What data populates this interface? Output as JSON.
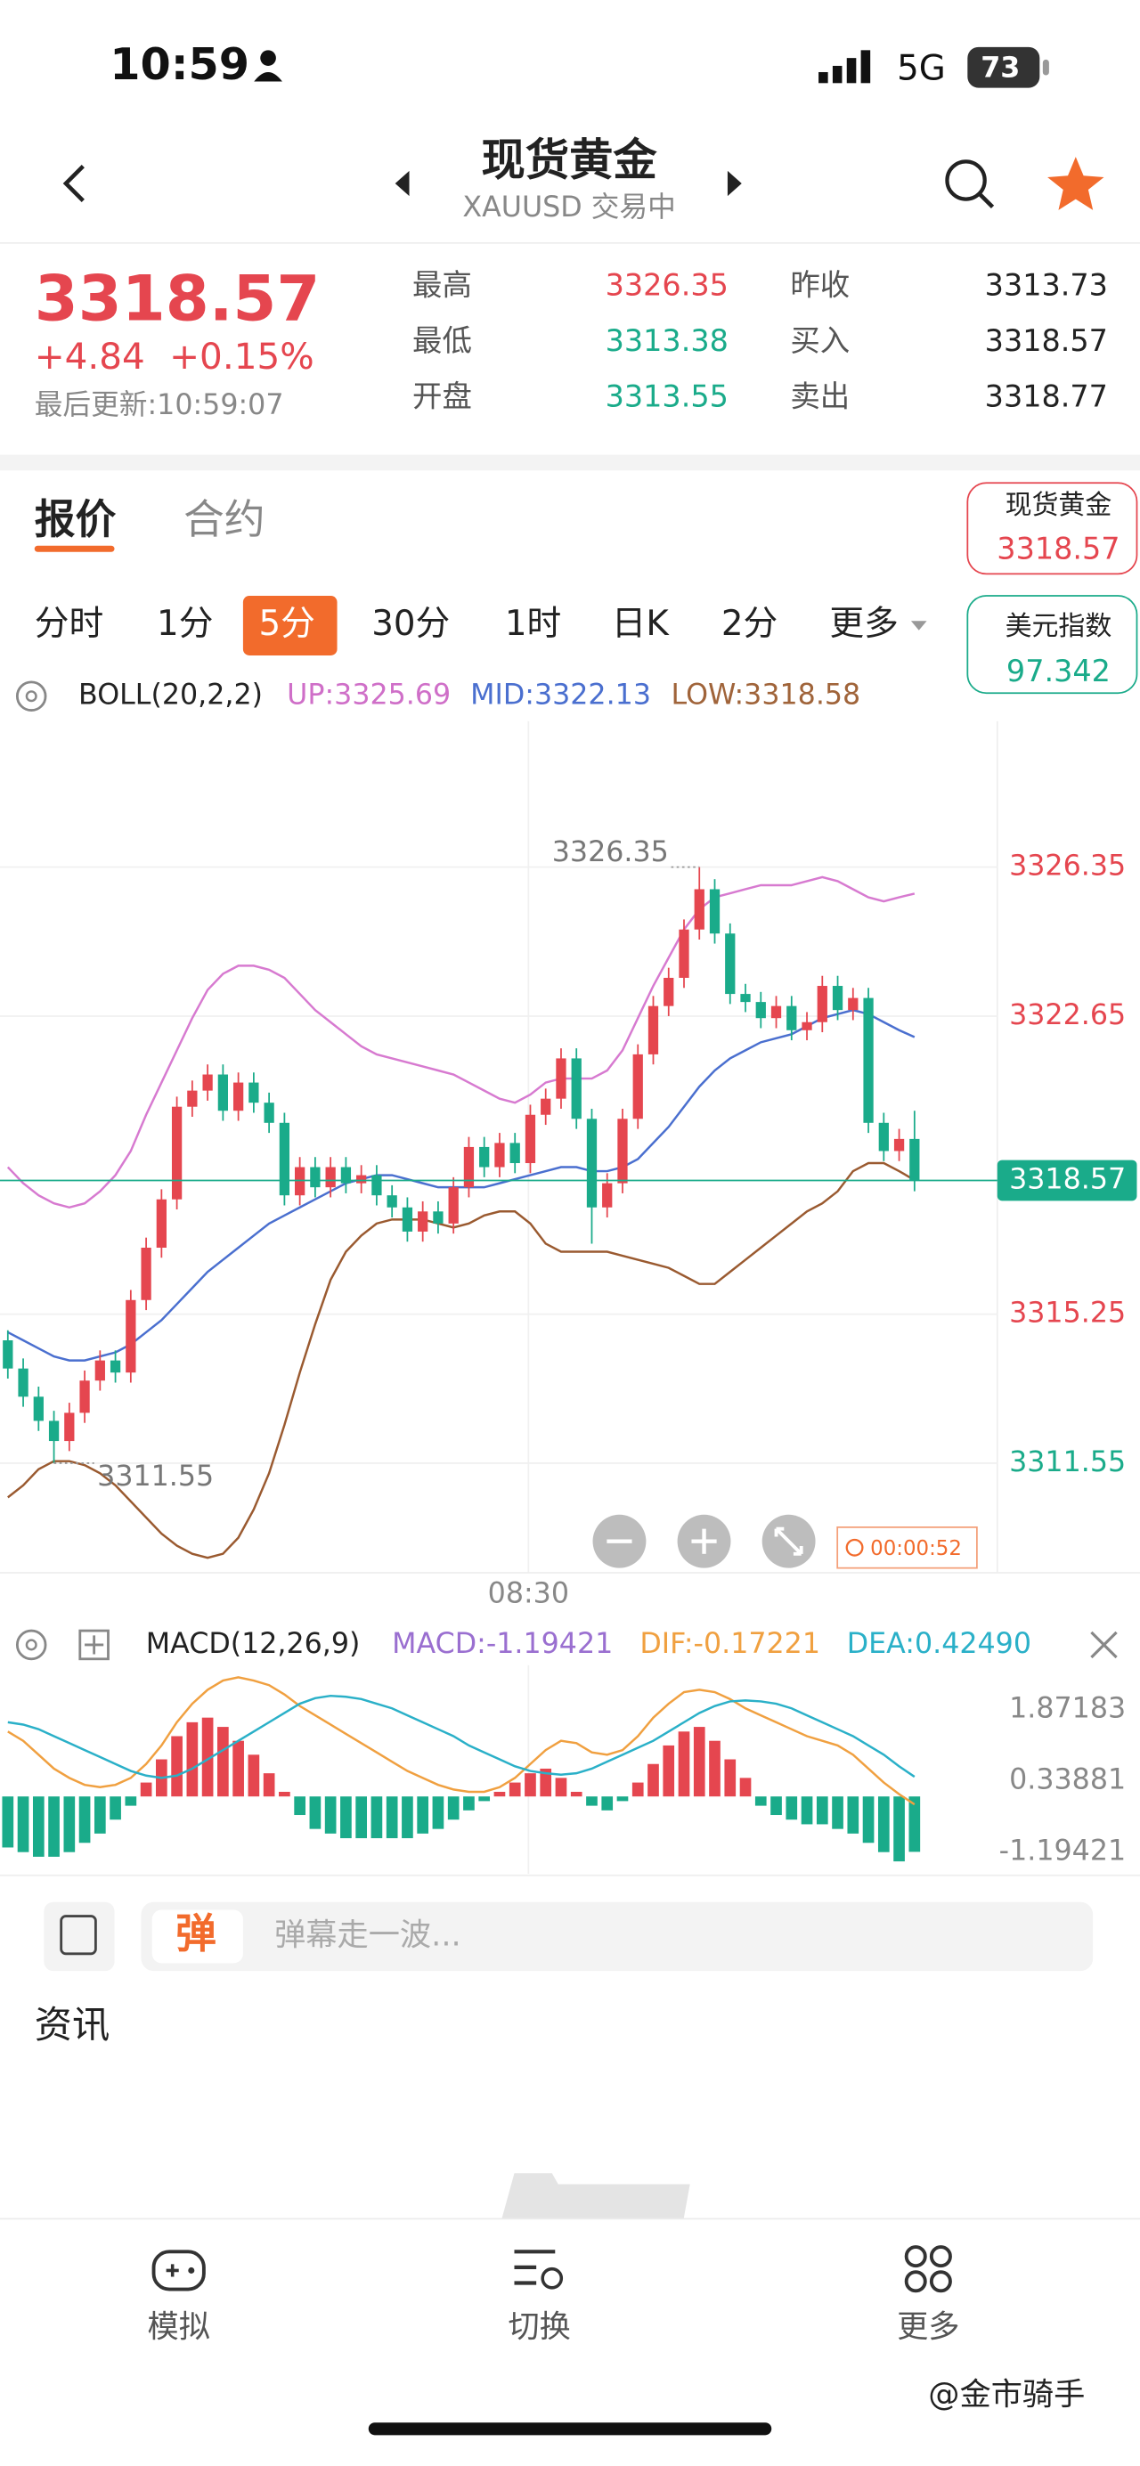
{
  "status_bar": {
    "time": "10:59",
    "network": "5G",
    "battery": "73"
  },
  "header": {
    "title": "现货黄金",
    "subtitle": "XAUUSD 交易中"
  },
  "quote": {
    "price": "3318.57",
    "change": "+4.84",
    "change_pct": "+0.15%",
    "updated": "最后更新:10:59:07",
    "stats": [
      {
        "label": "最高",
        "value": "3326.35"
      },
      {
        "label": "最低",
        "value": "3313.38"
      },
      {
        "label": "开盘",
        "value": "3313.55"
      },
      {
        "label": "昨收",
        "value": "3313.73"
      },
      {
        "label": "买入",
        "value": "3318.57"
      },
      {
        "label": "卖出",
        "value": "3318.77"
      }
    ]
  },
  "tabs": [
    "报价",
    "合约"
  ],
  "periods": [
    "分时",
    "1分",
    "5分",
    "30分",
    "1时",
    "日K",
    "2分",
    "更多"
  ],
  "active_period": 2,
  "watchlist": [
    {
      "name": "现货黄金",
      "value": "3318.57"
    },
    {
      "name": "美元指数",
      "value": "97.342"
    }
  ],
  "kline": {
    "indicator": "BOLL(20,2,2)",
    "up_label": "UP:3325.69",
    "mid_label": "MID:3322.13",
    "low_label": "LOW:3318.58",
    "ylim": [
      3308.83,
      3329.97
    ],
    "yticks": [
      3326.35,
      3322.65,
      3315.25,
      3311.55
    ],
    "last_price": 3318.57,
    "high_mark": 3326.35,
    "low_mark": 3311.55,
    "time_label": "08:30",
    "countdown": "00:00:52",
    "candles": [
      [
        3314.6,
        3314.85,
        3313.65,
        3313.9
      ],
      [
        3313.9,
        3314.15,
        3312.95,
        3313.2
      ],
      [
        3313.2,
        3313.45,
        3312.35,
        3312.6
      ],
      [
        3312.6,
        3312.85,
        3311.55,
        3312.1
      ],
      [
        3312.1,
        3313.05,
        3311.85,
        3312.8
      ],
      [
        3312.8,
        3313.85,
        3312.55,
        3313.6
      ],
      [
        3313.6,
        3314.35,
        3313.35,
        3314.1
      ],
      [
        3314.1,
        3314.35,
        3313.55,
        3313.8
      ],
      [
        3313.8,
        3315.85,
        3313.55,
        3315.6
      ],
      [
        3315.6,
        3317.15,
        3315.35,
        3316.9
      ],
      [
        3316.9,
        3318.35,
        3316.65,
        3318.1
      ],
      [
        3318.1,
        3320.65,
        3317.85,
        3320.4
      ],
      [
        3320.4,
        3321.05,
        3320.15,
        3320.8
      ],
      [
        3320.8,
        3321.45,
        3320.55,
        3321.2
      ],
      [
        3321.2,
        3321.45,
        3320.05,
        3320.3
      ],
      [
        3320.3,
        3321.25,
        3320.05,
        3321.0
      ],
      [
        3321.0,
        3321.25,
        3320.25,
        3320.5
      ],
      [
        3320.5,
        3320.75,
        3319.75,
        3320.0
      ],
      [
        3320.0,
        3320.25,
        3317.95,
        3318.2
      ],
      [
        3318.2,
        3319.15,
        3317.95,
        3318.9
      ],
      [
        3318.9,
        3319.15,
        3318.15,
        3318.4
      ],
      [
        3318.4,
        3319.15,
        3318.15,
        3318.9
      ],
      [
        3318.9,
        3319.15,
        3318.25,
        3318.5
      ],
      [
        3318.5,
        3318.95,
        3318.25,
        3318.7
      ],
      [
        3318.7,
        3318.95,
        3317.95,
        3318.2
      ],
      [
        3318.2,
        3318.45,
        3317.65,
        3317.9
      ],
      [
        3317.9,
        3318.15,
        3317.05,
        3317.3
      ],
      [
        3317.3,
        3318.05,
        3317.05,
        3317.8
      ],
      [
        3317.8,
        3318.05,
        3317.25,
        3317.5
      ],
      [
        3317.5,
        3318.65,
        3317.25,
        3318.4
      ],
      [
        3318.4,
        3319.65,
        3318.15,
        3319.4
      ],
      [
        3319.4,
        3319.65,
        3318.65,
        3318.9
      ],
      [
        3318.9,
        3319.75,
        3318.65,
        3319.5
      ],
      [
        3319.5,
        3319.75,
        3318.75,
        3319.0
      ],
      [
        3319.0,
        3320.45,
        3318.75,
        3320.2
      ],
      [
        3320.2,
        3320.85,
        3319.95,
        3320.6
      ],
      [
        3320.6,
        3321.85,
        3320.35,
        3321.6
      ],
      [
        3321.6,
        3321.85,
        3319.85,
        3320.1
      ],
      [
        3320.1,
        3320.35,
        3317.0,
        3317.9
      ],
      [
        3317.9,
        3318.75,
        3317.65,
        3318.5
      ],
      [
        3318.5,
        3320.35,
        3318.25,
        3320.1
      ],
      [
        3320.1,
        3321.95,
        3319.85,
        3321.7
      ],
      [
        3321.7,
        3323.15,
        3321.45,
        3322.9
      ],
      [
        3322.9,
        3323.85,
        3322.65,
        3323.6
      ],
      [
        3323.6,
        3325.05,
        3323.35,
        3324.8
      ],
      [
        3324.8,
        3326.35,
        3324.55,
        3325.8
      ],
      [
        3325.8,
        3326.05,
        3324.45,
        3324.7
      ],
      [
        3324.7,
        3324.95,
        3322.95,
        3323.2
      ],
      [
        3323.2,
        3323.45,
        3322.75,
        3323.0
      ],
      [
        3323.0,
        3323.25,
        3322.35,
        3322.6
      ],
      [
        3322.6,
        3323.15,
        3322.35,
        3322.9
      ],
      [
        3322.9,
        3323.15,
        3322.05,
        3322.3
      ],
      [
        3322.3,
        3322.75,
        3322.05,
        3322.5
      ],
      [
        3322.5,
        3323.65,
        3322.25,
        3323.4
      ],
      [
        3323.4,
        3323.65,
        3322.55,
        3322.8
      ],
      [
        3322.8,
        3323.35,
        3322.55,
        3323.1
      ],
      [
        3323.1,
        3323.35,
        3319.75,
        3320.0
      ],
      [
        3320.0,
        3320.25,
        3319.05,
        3319.3
      ],
      [
        3319.3,
        3319.85,
        3319.05,
        3319.6
      ],
      [
        3319.6,
        3320.3,
        3318.3,
        3318.57
      ]
    ],
    "boll": {
      "up": [
        3318.9,
        3318.5,
        3318.2,
        3318.0,
        3317.9,
        3318.0,
        3318.3,
        3318.7,
        3319.3,
        3320.2,
        3321.0,
        3321.8,
        3322.6,
        3323.3,
        3323.7,
        3323.9,
        3323.9,
        3323.8,
        3323.6,
        3323.2,
        3322.8,
        3322.5,
        3322.2,
        3321.9,
        3321.7,
        3321.6,
        3321.5,
        3321.4,
        3321.3,
        3321.2,
        3321.0,
        3320.8,
        3320.6,
        3320.5,
        3320.7,
        3321.0,
        3321.1,
        3321.1,
        3321.1,
        3321.3,
        3321.8,
        3322.6,
        3323.4,
        3324.1,
        3324.8,
        3325.3,
        3325.6,
        3325.7,
        3325.8,
        3325.9,
        3325.9,
        3325.9,
        3326.0,
        3326.1,
        3326.0,
        3325.8,
        3325.6,
        3325.5,
        3325.6,
        3325.69
      ],
      "mid": [
        3314.8,
        3314.6,
        3314.4,
        3314.2,
        3314.1,
        3314.1,
        3314.2,
        3314.3,
        3314.5,
        3314.8,
        3315.1,
        3315.5,
        3315.9,
        3316.3,
        3316.6,
        3316.9,
        3317.2,
        3317.5,
        3317.7,
        3317.9,
        3318.1,
        3318.3,
        3318.5,
        3318.6,
        3318.7,
        3318.7,
        3318.6,
        3318.5,
        3318.4,
        3318.4,
        3318.4,
        3318.4,
        3318.5,
        3318.6,
        3318.7,
        3318.8,
        3318.9,
        3318.9,
        3318.8,
        3318.8,
        3318.9,
        3319.1,
        3319.5,
        3319.9,
        3320.4,
        3320.9,
        3321.3,
        3321.6,
        3321.8,
        3322.0,
        3322.1,
        3322.2,
        3322.4,
        3322.6,
        3322.7,
        3322.8,
        3322.7,
        3322.5,
        3322.3,
        3322.13
      ],
      "low": [
        3310.7,
        3311.0,
        3311.4,
        3311.6,
        3311.6,
        3311.5,
        3311.3,
        3311.0,
        3310.6,
        3310.2,
        3309.8,
        3309.5,
        3309.3,
        3309.2,
        3309.3,
        3309.7,
        3310.4,
        3311.3,
        3312.5,
        3313.8,
        3315.0,
        3316.1,
        3316.8,
        3317.2,
        3317.5,
        3317.6,
        3317.6,
        3317.6,
        3317.5,
        3317.4,
        3317.5,
        3317.7,
        3317.8,
        3317.8,
        3317.5,
        3317.0,
        3316.8,
        3316.8,
        3316.8,
        3316.8,
        3316.7,
        3316.6,
        3316.5,
        3316.4,
        3316.2,
        3316.0,
        3316.0,
        3316.3,
        3316.6,
        3316.9,
        3317.2,
        3317.5,
        3317.8,
        3318.0,
        3318.3,
        3318.8,
        3319.0,
        3319.0,
        3318.8,
        3318.58
      ]
    }
  },
  "macd": {
    "indicator": "MACD(12,26,9)",
    "macd_label": "MACD:-1.19421",
    "dif_label": "DIF:-0.17221",
    "dea_label": "DEA:0.42490",
    "ylim": [
      -1.667,
      2.83
    ],
    "yticks": [
      1.87183,
      0.33881,
      -1.19421
    ],
    "hist": [
      -1.1,
      -1.2,
      -1.3,
      -1.3,
      -1.2,
      -1.0,
      -0.8,
      -0.5,
      -0.2,
      0.3,
      0.8,
      1.3,
      1.6,
      1.7,
      1.5,
      1.2,
      0.9,
      0.5,
      0.1,
      -0.4,
      -0.7,
      -0.8,
      -0.9,
      -0.9,
      -0.9,
      -0.9,
      -0.9,
      -0.8,
      -0.7,
      -0.5,
      -0.3,
      -0.1,
      0.1,
      0.3,
      0.5,
      0.6,
      0.4,
      0.1,
      -0.2,
      -0.3,
      -0.1,
      0.3,
      0.7,
      1.1,
      1.4,
      1.5,
      1.2,
      0.8,
      0.4,
      -0.2,
      -0.4,
      -0.5,
      -0.6,
      -0.6,
      -0.7,
      -0.8,
      -1.0,
      -1.2,
      -1.4,
      -1.19421
    ],
    "dif": [
      1.4,
      1.2,
      0.9,
      0.6,
      0.4,
      0.25,
      0.2,
      0.25,
      0.4,
      0.7,
      1.1,
      1.6,
      2.0,
      2.3,
      2.5,
      2.57,
      2.5,
      2.4,
      2.2,
      1.95,
      1.75,
      1.55,
      1.35,
      1.15,
      0.95,
      0.75,
      0.55,
      0.4,
      0.25,
      0.15,
      0.1,
      0.1,
      0.2,
      0.4,
      0.7,
      1.0,
      1.2,
      1.15,
      0.95,
      0.9,
      1.0,
      1.3,
      1.7,
      2.0,
      2.25,
      2.3,
      2.25,
      2.1,
      1.9,
      1.75,
      1.6,
      1.45,
      1.3,
      1.2,
      1.1,
      0.9,
      0.6,
      0.3,
      0.05,
      -0.17221
    ],
    "dea": [
      1.6,
      1.55,
      1.45,
      1.3,
      1.15,
      1.0,
      0.85,
      0.7,
      0.55,
      0.45,
      0.4,
      0.45,
      0.6,
      0.8,
      1.0,
      1.2,
      1.4,
      1.6,
      1.8,
      2.0,
      2.12,
      2.17,
      2.15,
      2.1,
      2.0,
      1.9,
      1.75,
      1.6,
      1.45,
      1.3,
      1.1,
      0.95,
      0.8,
      0.65,
      0.55,
      0.5,
      0.47,
      0.5,
      0.6,
      0.75,
      0.9,
      1.05,
      1.2,
      1.4,
      1.6,
      1.8,
      1.95,
      2.05,
      2.07,
      2.05,
      2.0,
      1.9,
      1.75,
      1.6,
      1.45,
      1.3,
      1.1,
      0.9,
      0.65,
      0.4249
    ]
  },
  "comment": {
    "badge": "弹",
    "placeholder": "弹幕走一波..."
  },
  "news": {
    "title": "资讯"
  },
  "nav": [
    "模拟",
    "切换",
    "更多"
  ],
  "watermark": "@金市骑手"
}
